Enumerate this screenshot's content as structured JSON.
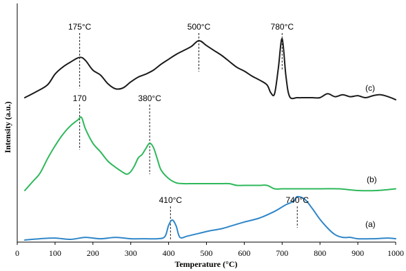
{
  "chart_data": {
    "type": "line",
    "xlabel": "Temperature (°C)",
    "ylabel": "Intensity (a.u.)",
    "xlim": [
      0,
      1000
    ],
    "x_ticks": [
      "0",
      "100",
      "200",
      "300",
      "400",
      "500",
      "600",
      "700",
      "800",
      "900",
      "1000"
    ],
    "y_ticks_shown": false,
    "grid": false,
    "colors": {
      "c": "#1a1a1a",
      "b": "#2db85a",
      "a": "#2f86c8"
    },
    "series": [
      {
        "key": "c",
        "tag": "(c)",
        "x": [
          20,
          50,
          80,
          100,
          120,
          140,
          165,
          180,
          200,
          220,
          240,
          260,
          280,
          300,
          320,
          340,
          360,
          380,
          400,
          420,
          440,
          460,
          480,
          500,
          520,
          540,
          560,
          580,
          600,
          620,
          640,
          660,
          670,
          680,
          690,
          700,
          710,
          720,
          740,
          760,
          780,
          800,
          820,
          840,
          860,
          880,
          900,
          920,
          940,
          960,
          980,
          1000
        ],
        "y": [
          0.0,
          0.06,
          0.13,
          0.24,
          0.31,
          0.36,
          0.41,
          0.38,
          0.28,
          0.23,
          0.14,
          0.09,
          0.1,
          0.16,
          0.21,
          0.24,
          0.28,
          0.34,
          0.39,
          0.44,
          0.48,
          0.52,
          0.58,
          0.53,
          0.48,
          0.43,
          0.37,
          0.31,
          0.27,
          0.22,
          0.18,
          0.13,
          0.05,
          0.04,
          0.3,
          0.6,
          0.22,
          0.01,
          0.0,
          0.0,
          0.0,
          0.0,
          0.04,
          0.01,
          0.03,
          0.01,
          0.02,
          0.0,
          0.02,
          0.03,
          0.01,
          -0.02
        ]
      },
      {
        "key": "b",
        "tag": "(b)",
        "x": [
          20,
          40,
          60,
          80,
          100,
          120,
          140,
          160,
          170,
          180,
          200,
          220,
          240,
          260,
          280,
          290,
          300,
          310,
          320,
          330,
          340,
          350,
          360,
          370,
          380,
          400,
          420,
          440,
          460,
          480,
          500,
          520,
          540,
          560,
          580,
          600,
          620,
          640,
          660,
          680,
          700,
          740,
          800,
          850,
          900,
          950,
          1000
        ],
        "y": [
          0.0,
          0.1,
          0.2,
          0.37,
          0.52,
          0.65,
          0.75,
          0.82,
          0.85,
          0.72,
          0.55,
          0.45,
          0.34,
          0.27,
          0.21,
          0.19,
          0.22,
          0.29,
          0.38,
          0.42,
          0.49,
          0.55,
          0.5,
          0.37,
          0.24,
          0.14,
          0.09,
          0.08,
          0.08,
          0.08,
          0.08,
          0.08,
          0.08,
          0.08,
          0.06,
          0.06,
          0.06,
          0.06,
          0.06,
          0.02,
          0.02,
          0.02,
          0.02,
          0.02,
          0.0,
          0.0,
          0.02
        ]
      },
      {
        "key": "a",
        "tag": "(a)",
        "x": [
          20,
          60,
          100,
          140,
          180,
          220,
          260,
          300,
          340,
          370,
          390,
          400,
          410,
          420,
          430,
          450,
          480,
          510,
          540,
          570,
          600,
          640,
          680,
          710,
          730,
          740,
          760,
          780,
          800,
          820,
          840,
          860,
          880,
          900,
          940,
          980,
          1000
        ],
        "y": [
          0.0,
          0.02,
          0.03,
          0.01,
          0.04,
          0.02,
          0.04,
          0.02,
          0.02,
          0.02,
          0.05,
          0.22,
          0.3,
          0.21,
          0.04,
          0.06,
          0.1,
          0.14,
          0.17,
          0.22,
          0.27,
          0.33,
          0.43,
          0.53,
          0.58,
          0.65,
          0.61,
          0.47,
          0.31,
          0.18,
          0.08,
          0.04,
          0.04,
          0.02,
          0.02,
          0.03,
          0.02
        ]
      }
    ],
    "annotations": [
      {
        "series": "c",
        "x": 165,
        "label": "175°C"
      },
      {
        "series": "c",
        "x": 480,
        "label": "500°C"
      },
      {
        "series": "c",
        "x": 700,
        "label": "780°C"
      },
      {
        "series": "b",
        "x": 165,
        "label": "170"
      },
      {
        "series": "b",
        "x": 350,
        "label": "380°C"
      },
      {
        "series": "a",
        "x": 405,
        "label": "410°C"
      },
      {
        "series": "a",
        "x": 740,
        "label": "740°C"
      }
    ]
  }
}
